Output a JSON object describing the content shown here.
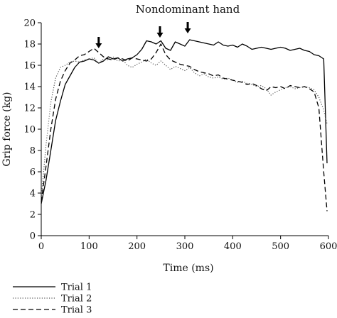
{
  "chart_data": {
    "type": "line",
    "title": "Nondominant hand",
    "xlabel": "Time (ms)",
    "ylabel": "Grip force (kg)",
    "xlim": [
      0,
      600
    ],
    "ylim": [
      0,
      20
    ],
    "xticks": [
      "0",
      "100",
      "200",
      "300",
      "400",
      "500",
      "600"
    ],
    "yticks": [
      "0",
      "2",
      "4",
      "6",
      "8",
      "10",
      "12",
      "14",
      "16",
      "18",
      "20"
    ],
    "grid": false,
    "legend_position": "bottom-left",
    "annotations": [
      {
        "type": "down-arrow",
        "x": 120,
        "y": 17.6
      },
      {
        "type": "down-arrow",
        "x": 248,
        "y": 18.6
      },
      {
        "type": "down-arrow",
        "x": 306,
        "y": 19.0
      }
    ],
    "series": [
      {
        "name": "Trial 1",
        "style": "solid",
        "x": [
          0,
          10,
          20,
          30,
          40,
          50,
          60,
          70,
          80,
          90,
          100,
          110,
          120,
          130,
          140,
          150,
          160,
          170,
          180,
          190,
          200,
          210,
          220,
          230,
          240,
          250,
          260,
          270,
          280,
          290,
          300,
          310,
          320,
          330,
          340,
          350,
          360,
          370,
          380,
          390,
          400,
          410,
          420,
          430,
          440,
          450,
          460,
          470,
          480,
          490,
          500,
          510,
          520,
          530,
          540,
          550,
          560,
          570,
          580,
          590,
          597
        ],
        "values": [
          3.0,
          5.2,
          8.0,
          10.8,
          12.6,
          14.2,
          15.0,
          15.8,
          16.3,
          16.4,
          16.6,
          16.5,
          16.2,
          16.4,
          16.8,
          16.6,
          16.7,
          16.4,
          16.6,
          16.7,
          17.0,
          17.5,
          18.3,
          18.2,
          18.0,
          18.3,
          17.6,
          17.4,
          18.2,
          18.0,
          17.8,
          18.4,
          18.3,
          18.2,
          18.1,
          18.0,
          17.9,
          18.2,
          17.9,
          17.8,
          17.9,
          17.7,
          18.0,
          17.8,
          17.5,
          17.6,
          17.7,
          17.6,
          17.5,
          17.6,
          17.7,
          17.6,
          17.4,
          17.5,
          17.6,
          17.4,
          17.3,
          17.0,
          16.9,
          16.6,
          6.8
        ]
      },
      {
        "name": "Trial 2",
        "style": "dotted",
        "x": [
          0,
          10,
          20,
          30,
          40,
          50,
          60,
          70,
          80,
          90,
          100,
          110,
          120,
          130,
          140,
          150,
          160,
          170,
          180,
          190,
          200,
          210,
          220,
          230,
          240,
          250,
          260,
          270,
          280,
          290,
          300,
          310,
          320,
          330,
          340,
          350,
          360,
          370,
          380,
          390,
          400,
          410,
          420,
          430,
          440,
          450,
          460,
          470,
          480,
          490,
          500,
          510,
          520,
          530,
          540,
          550,
          560,
          570,
          580,
          590,
          597
        ],
        "values": [
          3.5,
          8.5,
          12.5,
          14.8,
          15.8,
          16.0,
          16.3,
          16.4,
          16.3,
          16.5,
          16.6,
          16.7,
          16.2,
          16.6,
          16.5,
          16.8,
          16.4,
          16.5,
          16.0,
          15.8,
          16.1,
          16.3,
          16.6,
          16.2,
          16.0,
          16.4,
          16.0,
          15.6,
          15.9,
          15.7,
          15.5,
          15.8,
          15.3,
          15.0,
          15.2,
          14.9,
          14.8,
          14.9,
          14.7,
          14.8,
          14.6,
          14.4,
          14.5,
          14.3,
          14.2,
          14.0,
          14.1,
          13.8,
          13.2,
          13.5,
          13.7,
          13.9,
          14.0,
          13.8,
          13.9,
          14.0,
          13.9,
          13.7,
          13.0,
          11.8,
          10.5
        ]
      },
      {
        "name": "Trial 3",
        "style": "dashed",
        "x": [
          0,
          10,
          20,
          30,
          40,
          50,
          60,
          70,
          80,
          90,
          100,
          110,
          120,
          130,
          140,
          150,
          160,
          170,
          180,
          190,
          200,
          210,
          220,
          230,
          240,
          250,
          260,
          270,
          280,
          290,
          300,
          310,
          320,
          330,
          340,
          350,
          360,
          370,
          380,
          390,
          400,
          410,
          420,
          430,
          440,
          450,
          460,
          470,
          480,
          490,
          500,
          510,
          520,
          530,
          540,
          550,
          560,
          570,
          580,
          590,
          597
        ],
        "values": [
          3.2,
          6.5,
          10.0,
          12.8,
          14.5,
          15.5,
          16.2,
          16.5,
          16.9,
          17.0,
          17.3,
          17.6,
          17.2,
          16.8,
          16.6,
          16.5,
          16.7,
          16.6,
          16.4,
          16.7,
          16.6,
          16.5,
          16.4,
          16.6,
          17.2,
          18.0,
          17.0,
          16.5,
          16.3,
          16.1,
          16.0,
          15.9,
          15.6,
          15.4,
          15.3,
          15.2,
          15.0,
          15.1,
          14.8,
          14.7,
          14.6,
          14.5,
          14.4,
          14.2,
          14.3,
          14.1,
          13.8,
          13.6,
          14.0,
          13.9,
          14.0,
          13.8,
          14.1,
          14.0,
          13.9,
          14.0,
          13.8,
          13.5,
          12.0,
          6.0,
          2.3
        ]
      }
    ]
  }
}
